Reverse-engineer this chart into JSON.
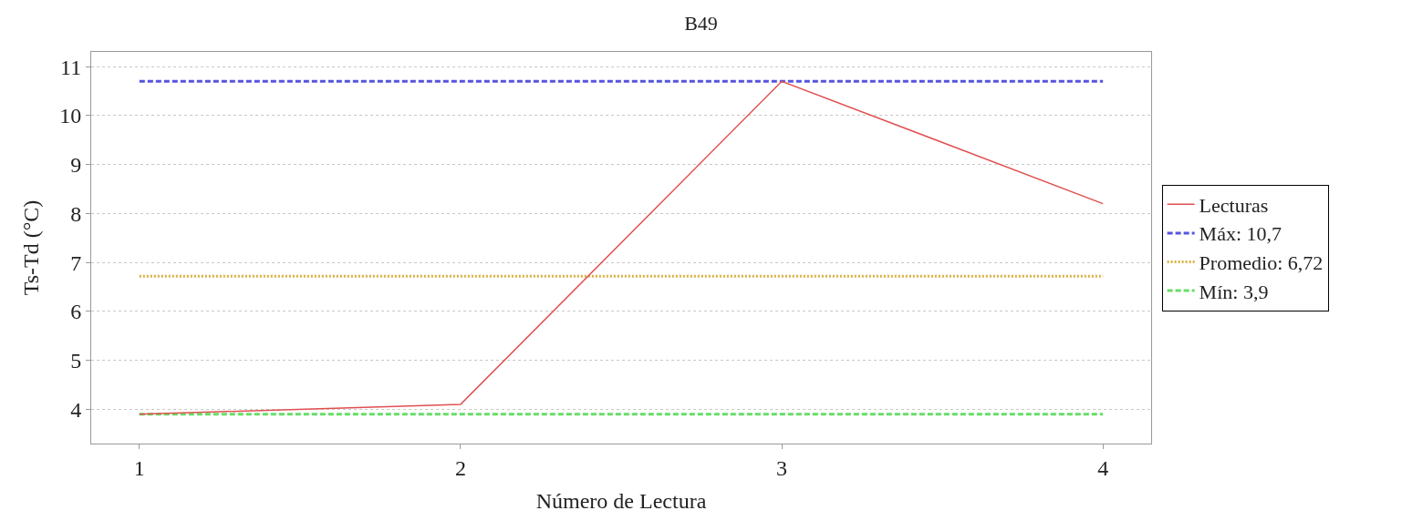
{
  "chart_data": {
    "type": "line",
    "title": "B49",
    "xlabel": "Número de Lectura",
    "ylabel": "Ts-Td (°C)",
    "x": [
      1,
      2,
      3,
      4
    ],
    "series": [
      {
        "name": "Lecturas",
        "color": "#e05050",
        "values": [
          3.9,
          4.1,
          10.7,
          8.2
        ],
        "line_style": "solid"
      },
      {
        "name": "Máx: 10,7",
        "color": "#5555dd",
        "values": [
          10.7,
          10.7,
          10.7,
          10.7
        ],
        "line_style": "dashed"
      },
      {
        "name": "Promedio: 6,72",
        "color": "#d8b040",
        "values": [
          6.72,
          6.72,
          6.72,
          6.72
        ],
        "line_style": "dotted"
      },
      {
        "name": "Mín: 3,9",
        "color": "#66dd66",
        "values": [
          3.9,
          3.9,
          3.9,
          3.9
        ],
        "line_style": "dashed"
      }
    ],
    "xlim": [
      0.85,
      4.15
    ],
    "xticks": [
      1,
      2,
      3,
      4
    ],
    "ylim": [
      3.3,
      11.3
    ],
    "yticks": [
      4,
      5,
      6,
      7,
      8,
      9,
      10,
      11
    ],
    "grid": "y",
    "legend": "right",
    "marker": "none"
  }
}
